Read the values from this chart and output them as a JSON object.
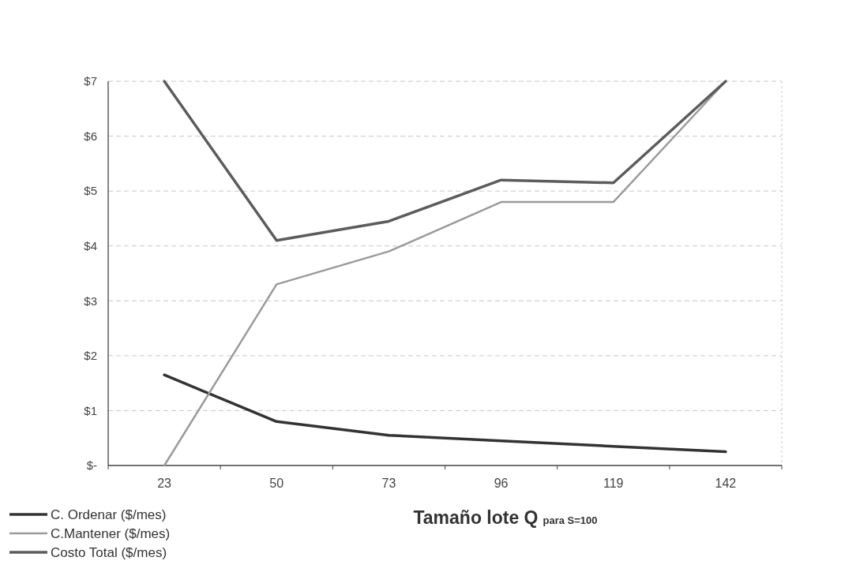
{
  "chart_data": {
    "type": "line",
    "xlabel": "Tamaño lote Q para S=100",
    "categories": [
      "23",
      "50",
      "73",
      "96",
      "119",
      "142"
    ],
    "series": [
      {
        "name": "C. Ordenar ($/mes)",
        "color": "#333333",
        "values": [
          1.65,
          0.8,
          0.55,
          0.45,
          0.35,
          0.25
        ]
      },
      {
        "name": "C.Mantener ($/mes)",
        "color": "#9a9a9a",
        "values": [
          0,
          3.3,
          3.9,
          4.8,
          4.8,
          7
        ]
      },
      {
        "name": "Costo Total ($/mes)",
        "color": "#5c5c5c",
        "values": [
          7,
          4.1,
          4.45,
          5.2,
          5.15,
          7
        ]
      }
    ],
    "ylim": [
      0,
      7
    ],
    "yticks": [
      {
        "value": 0,
        "label": "$-"
      },
      {
        "value": 1,
        "label": "$1"
      },
      {
        "value": 2,
        "label": "$2"
      },
      {
        "value": 3,
        "label": "$3"
      },
      {
        "value": 4,
        "label": "$4"
      },
      {
        "value": 5,
        "label": "$5"
      },
      {
        "value": 6,
        "label": "$6"
      },
      {
        "value": 7,
        "label": "$7"
      }
    ],
    "grid": "y",
    "legend": "bottom left"
  }
}
